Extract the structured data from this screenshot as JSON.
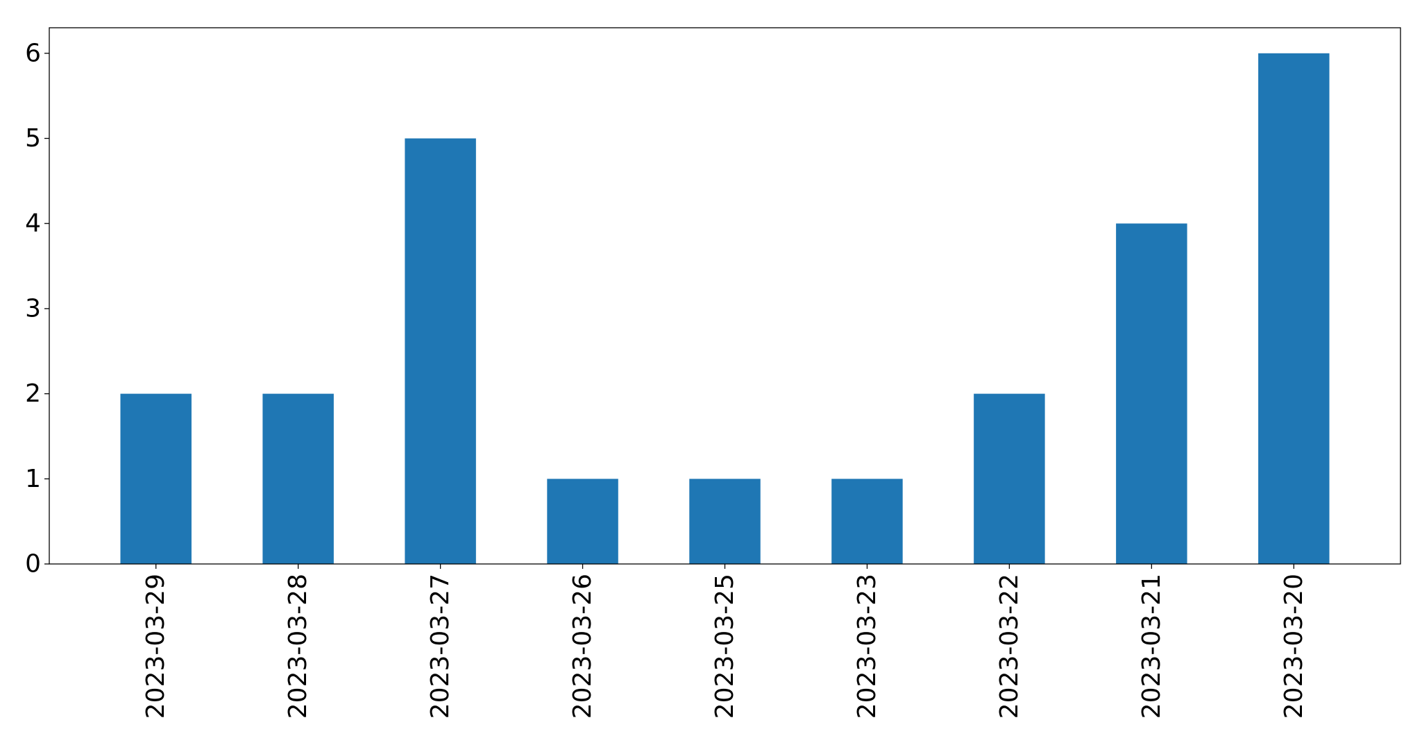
{
  "chart_data": {
    "type": "bar",
    "title": "",
    "xlabel": "",
    "ylabel": "",
    "categories": [
      "2023-03-29",
      "2023-03-28",
      "2023-03-27",
      "2023-03-26",
      "2023-03-25",
      "2023-03-23",
      "2023-03-22",
      "2023-03-21",
      "2023-03-20"
    ],
    "values": [
      2,
      2,
      5,
      1,
      1,
      1,
      2,
      4,
      6
    ],
    "ylim": [
      0,
      6.3
    ],
    "yticks": [
      "0",
      "1",
      "2",
      "3",
      "4",
      "5",
      "6"
    ],
    "grid": false,
    "bar_color": "#1f77b4"
  }
}
